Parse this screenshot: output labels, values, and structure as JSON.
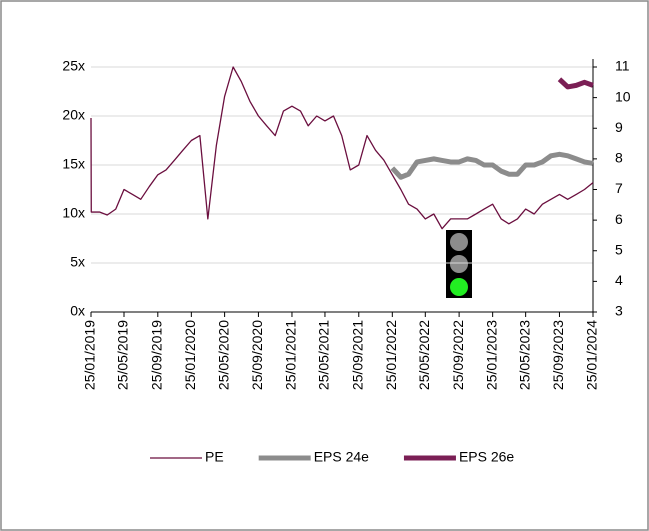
{
  "chart_data": {
    "type": "line",
    "x": [
      "25/01/2019",
      "26/01/2019",
      "25/02/2019",
      "25/03/2019",
      "25/04/2019",
      "25/05/2019",
      "25/06/2019",
      "25/07/2019",
      "25/08/2019",
      "25/09/2019",
      "25/10/2019",
      "25/11/2019",
      "25/12/2019",
      "25/01/2020",
      "25/02/2020",
      "25/03/2020",
      "25/04/2020",
      "25/05/2020",
      "25/06/2020",
      "25/07/2020",
      "25/08/2020",
      "25/09/2020",
      "25/10/2020",
      "25/11/2020",
      "25/12/2020",
      "25/01/2021",
      "25/02/2021",
      "25/03/2021",
      "25/04/2021",
      "25/05/2021",
      "25/06/2021",
      "25/07/2021",
      "25/08/2021",
      "25/09/2021",
      "25/10/2021",
      "25/11/2021",
      "25/12/2021",
      "25/01/2022",
      "25/02/2022",
      "25/03/2022",
      "25/04/2022",
      "25/05/2022",
      "25/06/2022",
      "25/07/2022",
      "25/08/2022",
      "25/09/2022",
      "25/10/2022",
      "25/11/2022",
      "25/12/2022",
      "25/01/2023",
      "25/02/2023",
      "25/03/2023",
      "25/04/2023",
      "25/05/2023",
      "25/06/2023",
      "25/07/2023",
      "25/08/2023",
      "25/09/2023",
      "25/10/2023",
      "25/11/2023",
      "25/12/2023",
      "25/01/2024"
    ],
    "series": [
      {
        "name": "PE",
        "color": "#6b0f3f",
        "values": [
          19.8,
          10.2,
          10.2,
          9.9,
          10.5,
          12.5,
          12,
          11.5,
          12.8,
          14,
          14.5,
          15.5,
          16.5,
          17.5,
          18,
          9.5,
          17,
          22,
          25,
          23.5,
          21.5,
          20,
          19,
          18,
          20.5,
          21,
          20.5,
          19,
          20,
          19.5,
          20,
          18,
          14.5,
          15,
          18,
          16.5,
          15.5,
          14,
          12.5,
          11,
          10.5,
          9.5,
          10,
          8.5,
          9.5,
          9.5,
          9.5,
          10,
          10.5,
          11,
          9.5,
          9,
          9.5,
          10.5,
          10,
          11,
          11.5,
          12,
          11.5,
          12,
          12.5,
          13.2
        ]
      },
      {
        "name": "EPS 24e",
        "color": "#8c8c8c",
        "axis": "y2",
        "values": [
          null,
          null,
          null,
          null,
          null,
          null,
          null,
          null,
          null,
          null,
          null,
          null,
          null,
          null,
          null,
          null,
          null,
          null,
          null,
          null,
          null,
          null,
          null,
          null,
          null,
          null,
          null,
          null,
          null,
          null,
          null,
          null,
          null,
          null,
          null,
          null,
          null,
          7.7,
          7.4,
          7.5,
          7.9,
          7.95,
          8,
          7.95,
          7.9,
          7.9,
          8,
          7.95,
          7.8,
          7.8,
          7.6,
          7.5,
          7.5,
          7.8,
          7.8,
          7.9,
          8.1,
          8.15,
          8.1,
          8,
          7.9,
          7.85
        ]
      },
      {
        "name": "EPS 26e",
        "color": "#7b1f55",
        "axis": "y2",
        "values": [
          null,
          null,
          null,
          null,
          null,
          null,
          null,
          null,
          null,
          null,
          null,
          null,
          null,
          null,
          null,
          null,
          null,
          null,
          null,
          null,
          null,
          null,
          null,
          null,
          null,
          null,
          null,
          null,
          null,
          null,
          null,
          null,
          null,
          null,
          null,
          null,
          null,
          null,
          null,
          null,
          null,
          null,
          null,
          null,
          null,
          null,
          null,
          null,
          null,
          null,
          null,
          null,
          null,
          null,
          null,
          null,
          null,
          10.6,
          10.35,
          10.4,
          10.5,
          10.4
        ]
      }
    ],
    "xlim": [
      "25/01/2019",
      "25/01/2024"
    ],
    "xticks": [
      "25/01/2019",
      "25/05/2019",
      "25/09/2019",
      "25/01/2020",
      "25/05/2020",
      "25/09/2020",
      "25/01/2021",
      "25/05/2021",
      "25/09/2021",
      "25/01/2022",
      "25/05/2022",
      "25/09/2022",
      "25/01/2023",
      "25/05/2023",
      "25/09/2023",
      "25/01/2024"
    ],
    "ylim": [
      0,
      25
    ],
    "yticks": [
      {
        "value": 0,
        "label": "0x"
      },
      {
        "value": 5,
        "label": "5x"
      },
      {
        "value": 10,
        "label": "10x"
      },
      {
        "value": 15,
        "label": "15x"
      },
      {
        "value": 20,
        "label": "20x"
      },
      {
        "value": 25,
        "label": "25x"
      }
    ],
    "y2lim": [
      3,
      11
    ],
    "y2ticks": [
      3,
      4,
      5,
      6,
      7,
      8,
      9,
      10,
      11
    ],
    "grid": true,
    "legend": "bottom"
  }
}
